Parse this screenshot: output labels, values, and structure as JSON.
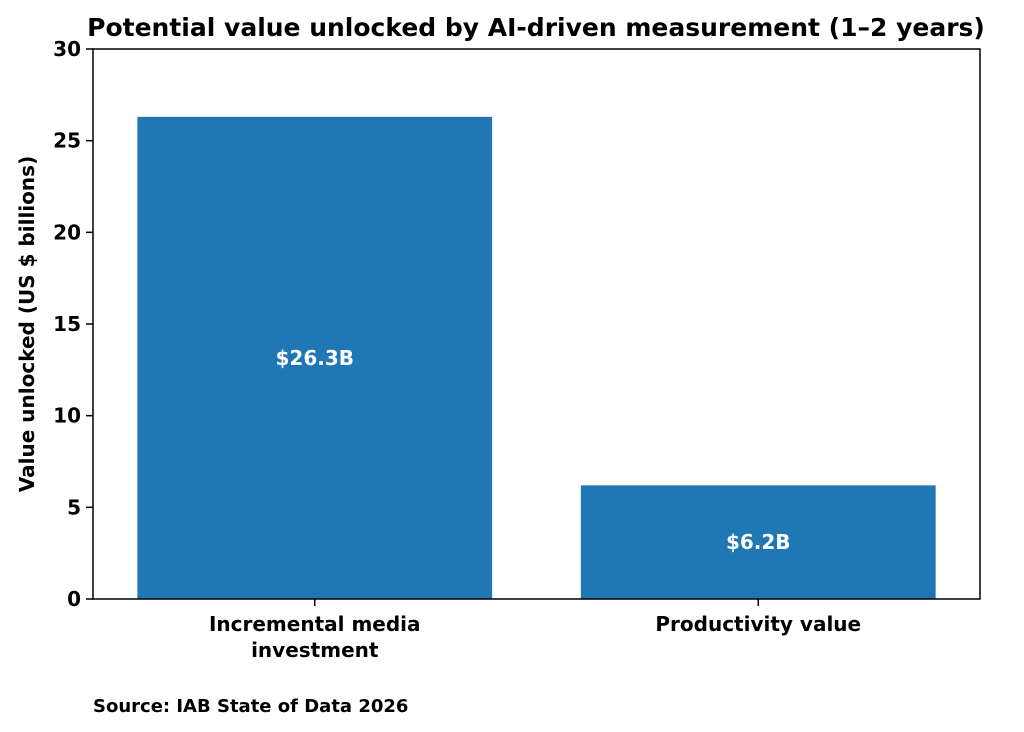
{
  "chart_data": {
    "type": "bar",
    "title": "Potential value unlocked by AI-driven measurement (1–2 years)",
    "xlabel": "",
    "ylabel": "Value unlocked (US $ billions)",
    "categories": [
      [
        "Incremental media",
        "investment"
      ],
      [
        "Productivity value"
      ]
    ],
    "values": [
      26.3,
      6.2
    ],
    "data_labels": [
      "$26.3B",
      "$6.2B"
    ],
    "ylim": [
      0,
      30
    ],
    "yticks": [
      0,
      5,
      10,
      15,
      20,
      25,
      30
    ],
    "bar_color": "#1f77b4",
    "grid": false,
    "source": "Source: IAB State of Data 2026"
  }
}
